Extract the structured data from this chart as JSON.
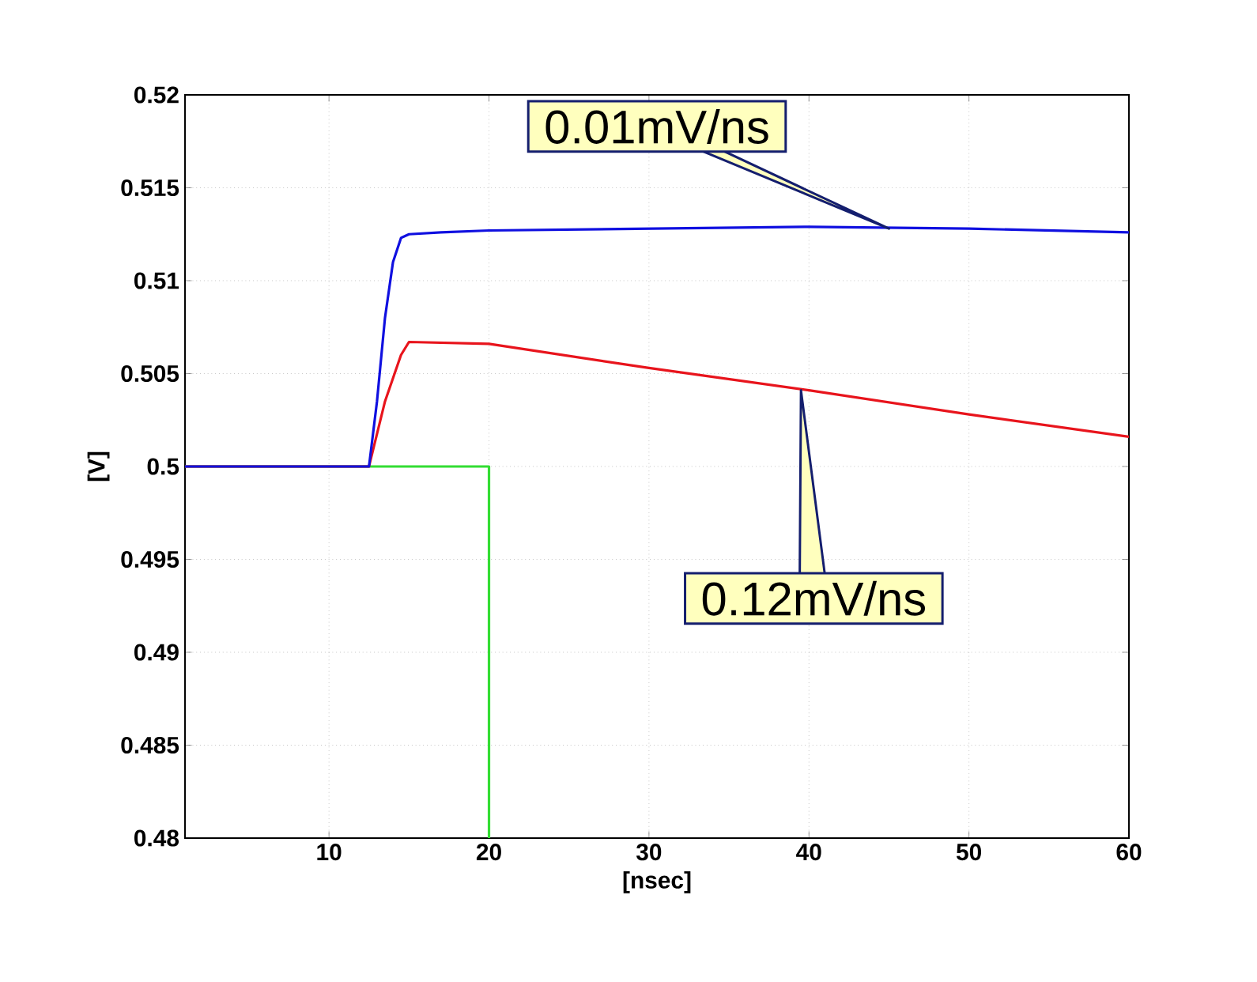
{
  "chart_data": {
    "type": "line",
    "xlabel": "[nsec]",
    "ylabel": "[V]",
    "xlim": [
      1,
      60
    ],
    "ylim": [
      0.48,
      0.52
    ],
    "xticks": [
      10,
      20,
      30,
      40,
      50,
      60
    ],
    "yticks": [
      0.48,
      0.485,
      0.49,
      0.495,
      0.5,
      0.505,
      0.51,
      0.515,
      0.52
    ],
    "grid": true,
    "line_style": "solid",
    "marker": "none",
    "series": [
      {
        "color": "#33dd33",
        "x": [
          1,
          20,
          20
        ],
        "values": [
          0.5,
          0.5,
          0.48
        ]
      },
      {
        "color": "#e8141c",
        "x": [
          1,
          12.5,
          13.5,
          14.5,
          15,
          20,
          30,
          40,
          50,
          60
        ],
        "values": [
          0.5,
          0.5,
          0.5035,
          0.506,
          0.5067,
          0.5066,
          0.5053,
          0.5041,
          0.5028,
          0.5016
        ]
      },
      {
        "color": "#1010e0",
        "x": [
          1,
          12.5,
          13,
          13.5,
          14,
          14.5,
          15,
          17,
          20,
          30,
          40,
          50,
          60
        ],
        "values": [
          0.5,
          0.5,
          0.5035,
          0.508,
          0.511,
          0.5123,
          0.5125,
          0.5126,
          0.5127,
          0.5128,
          0.5129,
          0.5128,
          0.5126
        ]
      }
    ],
    "annotations": [
      {
        "text": "0.01mV/ns",
        "x": 45,
        "y": 0.5128
      },
      {
        "text": "0.12mV/ns",
        "x": 39.5,
        "y": 0.5041
      }
    ]
  }
}
